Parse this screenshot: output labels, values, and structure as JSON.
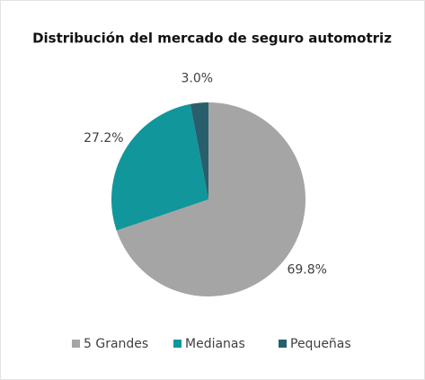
{
  "chart_data": {
    "type": "pie",
    "title": "Distribución del mercado de seguro automotriz",
    "categories": [
      "5 Grandes",
      "Medianas",
      "Pequeñas"
    ],
    "values": [
      69.8,
      27.2,
      3.0
    ],
    "value_labels": [
      "69.8%",
      "27.2%",
      "3.0%"
    ],
    "colors": [
      "#a5a5a5",
      "#11969b",
      "#285f6c"
    ],
    "legend": "bottom"
  }
}
